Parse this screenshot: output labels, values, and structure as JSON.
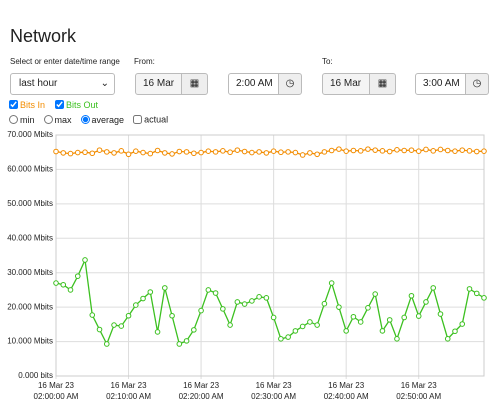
{
  "header": {
    "title": "Network"
  },
  "controls": {
    "range_label": "Select or enter date/time range",
    "range_value": "last hour",
    "from_label": "From:",
    "from_date": "16 Mar 23",
    "from_time": "2:00 AM",
    "to_label": "To:",
    "to_date": "16 Mar 23",
    "to_time": "3:00 AM",
    "modes": [
      "min",
      "max",
      "average"
    ],
    "actual": "actual"
  },
  "chart_data": {
    "type": "line",
    "x": [
      0,
      1,
      2,
      3,
      4,
      5,
      6,
      7,
      8,
      9,
      10,
      11,
      12,
      13,
      14,
      15,
      16,
      17,
      18,
      19,
      20,
      21,
      22,
      23,
      24,
      25,
      26,
      27,
      28,
      29,
      30,
      31,
      32,
      33,
      34,
      35,
      36,
      37,
      38,
      39,
      40,
      41,
      42,
      43,
      44,
      45,
      46,
      47,
      48,
      49,
      50,
      51,
      52,
      53,
      54,
      55,
      56,
      57,
      58,
      59
    ],
    "xlim": [
      0,
      59
    ],
    "xticks": [
      {
        "value": 0,
        "label": "16 Mar 23\n02:00:00 AM"
      },
      {
        "value": 10,
        "label": "16 Mar 23\n02:10:00 AM"
      },
      {
        "value": 20,
        "label": "16 Mar 23\n02:20:00 AM"
      },
      {
        "value": 30,
        "label": "16 Mar 23\n02:30:00 AM"
      },
      {
        "value": 40,
        "label": "16 Mar 23\n02:40:00 AM"
      },
      {
        "value": 50,
        "label": "16 Mar 23\n02:50:00 AM"
      }
    ],
    "ylim": [
      0,
      70
    ],
    "yticks": [
      {
        "value": 0,
        "label": "0.000 bits"
      },
      {
        "value": 10,
        "label": "10.000 Mbits"
      },
      {
        "value": 20,
        "label": "20.000 Mbits"
      },
      {
        "value": 30,
        "label": "30.000 Mbits"
      },
      {
        "value": 40,
        "label": "40.000 Mbits"
      },
      {
        "value": 50,
        "label": "50.000 Mbits"
      },
      {
        "value": 60,
        "label": "60.000 Mbits"
      },
      {
        "value": 70,
        "label": "70.000 Mbits"
      }
    ],
    "grid": true,
    "series": [
      {
        "name": "Bits In",
        "color": "#f28c00",
        "values": [
          65.2,
          64.8,
          64.6,
          64.9,
          65.0,
          64.7,
          65.6,
          65.1,
          64.8,
          65.4,
          64.4,
          65.3,
          64.9,
          64.6,
          65.5,
          64.8,
          64.5,
          65.2,
          65.1,
          64.7,
          64.9,
          65.3,
          65.1,
          65.4,
          65.0,
          65.6,
          65.2,
          64.9,
          65.1,
          64.8,
          65.3,
          65.0,
          65.1,
          64.9,
          64.2,
          64.8,
          64.4,
          65.1,
          65.5,
          65.9,
          65.3,
          65.5,
          65.4,
          65.9,
          65.6,
          65.4,
          65.2,
          65.7,
          65.5,
          65.6,
          65.3,
          65.8,
          65.4,
          65.8,
          65.5,
          65.3,
          65.6,
          65.4,
          65.2,
          65.3
        ]
      },
      {
        "name": "Bits Out",
        "color": "#3cc020",
        "values": [
          27.0,
          26.5,
          25.0,
          29.0,
          33.7,
          17.7,
          13.5,
          9.3,
          14.8,
          14.5,
          17.5,
          20.6,
          22.5,
          24.4,
          12.8,
          25.6,
          17.5,
          9.3,
          10.2,
          13.4,
          19.0,
          25.0,
          24.1,
          19.5,
          14.8,
          21.5,
          20.9,
          21.8,
          23.0,
          22.7,
          17.0,
          10.8,
          11.3,
          13.1,
          14.4,
          15.7,
          14.8,
          21.0,
          27.0,
          20.0,
          13.1,
          17.2,
          15.7,
          19.8,
          23.8,
          13.1,
          16.3,
          10.8,
          17.0,
          23.3,
          17.4,
          21.5,
          25.6,
          18.0,
          10.8,
          13.0,
          15.1,
          25.3,
          24.0,
          22.7
        ]
      }
    ]
  }
}
